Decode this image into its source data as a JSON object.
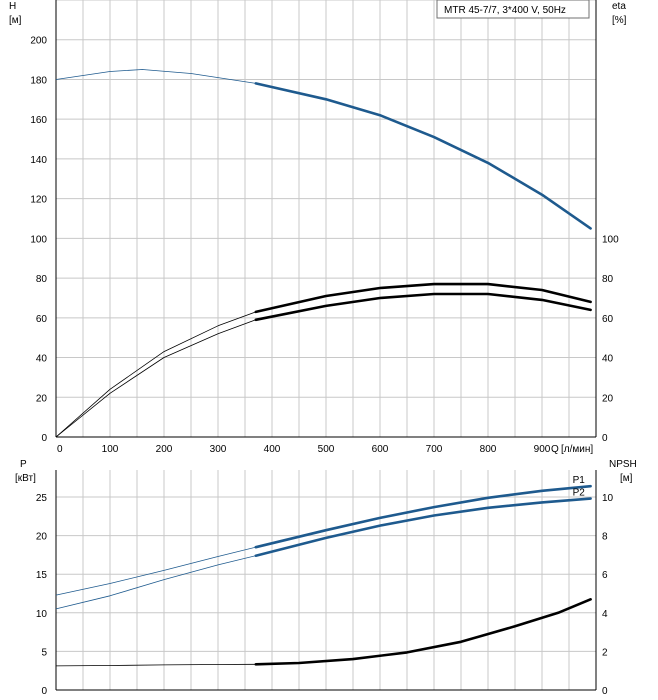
{
  "chart_data": [
    {
      "name": "top",
      "type": "line",
      "title": "MTR 45-7/7, 3*400 V, 50Hz",
      "left_axis": {
        "name": "H",
        "unit": "[м]",
        "ylim": [
          0,
          220
        ],
        "ticks": [
          0,
          20,
          40,
          60,
          80,
          100,
          120,
          140,
          160,
          180,
          200
        ]
      },
      "right_axis": {
        "name": "eta",
        "unit": "[%]",
        "ylim": [
          0,
          220
        ],
        "ticks": [
          0,
          20,
          40,
          60,
          80,
          100
        ]
      },
      "x_axis": {
        "name": "Q",
        "unit": "[л/мин]",
        "xlim": [
          0,
          1000
        ],
        "ticks": [
          0,
          100,
          200,
          300,
          400,
          500,
          600,
          700,
          800,
          900
        ]
      },
      "series": [
        {
          "name": "H",
          "axis": "left",
          "color": "#1e5a8e",
          "x": [
            0,
            100,
            160,
            250,
            370,
            500,
            600,
            700,
            800,
            900,
            990
          ],
          "values": [
            180,
            184,
            185,
            183,
            178,
            170,
            162,
            151,
            138,
            122,
            105
          ],
          "bold_from": 370
        },
        {
          "name": "eta-upper",
          "axis": "right",
          "color": "#000000",
          "x": [
            0,
            100,
            200,
            300,
            370,
            500,
            600,
            700,
            800,
            900,
            990
          ],
          "values": [
            0,
            24,
            43,
            56,
            63,
            71,
            75,
            77,
            77,
            74,
            68
          ],
          "bold_from": 370
        },
        {
          "name": "eta-lower",
          "axis": "right",
          "color": "#000000",
          "x": [
            0,
            100,
            200,
            300,
            370,
            500,
            600,
            700,
            800,
            900,
            990
          ],
          "values": [
            0,
            22,
            40,
            52,
            59,
            66,
            70,
            72,
            72,
            69,
            64
          ],
          "bold_from": 370
        }
      ]
    },
    {
      "name": "bottom",
      "type": "line",
      "left_axis": {
        "name": "P",
        "unit": "[кВт]",
        "ylim": [
          0,
          28.5
        ],
        "ticks": [
          0,
          5,
          10,
          15,
          20,
          25
        ]
      },
      "right_axis": {
        "name": "NPSH",
        "unit": "[м]",
        "ylim": [
          0,
          11.4
        ],
        "ticks": [
          0,
          2,
          4,
          6,
          8,
          10
        ]
      },
      "x_axis": {
        "xlim": [
          0,
          1000
        ]
      },
      "series": [
        {
          "name": "P1",
          "label": "P1",
          "axis": "left",
          "color": "#1e5a8e",
          "x": [
            0,
            100,
            200,
            300,
            370,
            500,
            600,
            700,
            800,
            900,
            990
          ],
          "values": [
            12.3,
            13.8,
            15.5,
            17.3,
            18.5,
            20.7,
            22.3,
            23.7,
            24.9,
            25.8,
            26.4
          ],
          "bold_from": 370
        },
        {
          "name": "P2",
          "label": "P2",
          "axis": "left",
          "color": "#1e5a8e",
          "x": [
            0,
            100,
            200,
            300,
            370,
            500,
            600,
            700,
            800,
            900,
            990
          ],
          "values": [
            10.5,
            12.2,
            14.3,
            16.2,
            17.4,
            19.7,
            21.3,
            22.6,
            23.6,
            24.3,
            24.8
          ],
          "bold_from": 370
        },
        {
          "name": "NPSH",
          "axis": "right",
          "color": "#000000",
          "x": [
            0,
            100,
            200,
            300,
            370,
            450,
            550,
            650,
            750,
            850,
            930,
            990
          ],
          "values": [
            1.25,
            1.27,
            1.3,
            1.32,
            1.33,
            1.4,
            1.6,
            1.95,
            2.5,
            3.3,
            4.0,
            4.7
          ],
          "bold_from": 370
        }
      ]
    }
  ]
}
